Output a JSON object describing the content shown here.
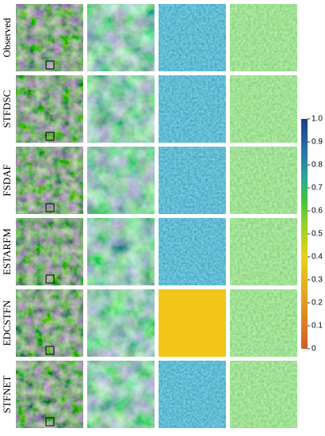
{
  "rows": [
    "Observed",
    "STFDSC",
    "FSDAF",
    "ESTARFM",
    "EDCSTFN",
    "STFNET"
  ],
  "colorbar": {
    "lim": [
      0,
      1
    ],
    "ticks": [
      {
        "value": 1,
        "label": "1.0"
      },
      0.9,
      0.8,
      0.7,
      0.6,
      0.5,
      0.4,
      0.3,
      0.2,
      0.1,
      0
    ]
  }
}
